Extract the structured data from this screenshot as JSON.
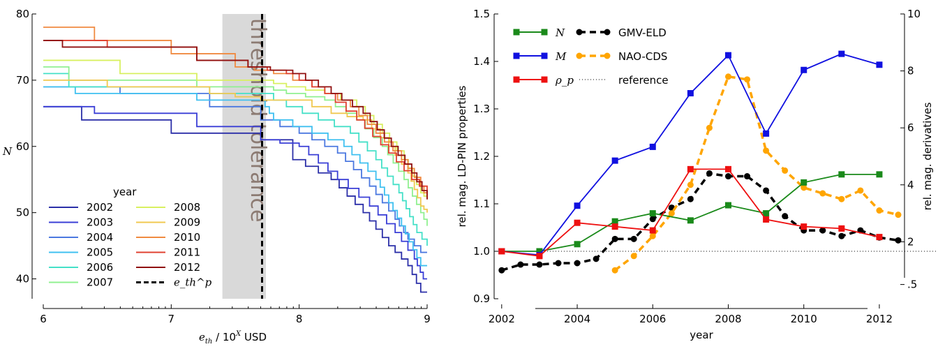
{
  "chart_data": [
    {
      "type": "line",
      "subtype": "step",
      "xlabel_main": "e",
      "xlabel_sub": "th",
      "xlabel_rest": " / 10",
      "xlabel_sup": "X",
      "xlabel_unit": " USD",
      "ylabel": "N",
      "xlim": [
        6,
        9
      ],
      "ylim": [
        37,
        80
      ],
      "xticks": [
        "6",
        "7",
        "8",
        "9"
      ],
      "yticks": [
        "40",
        "50",
        "60",
        "70",
        "80"
      ],
      "threshold_band": {
        "x0": 7.4,
        "x1": 7.74,
        "label": "threshold tolerance",
        "color": "#d9d9d9",
        "label_color": "#8c7b73"
      },
      "threshold_line": {
        "x": 7.71,
        "legend": "e_th^p"
      },
      "legend_title": "year",
      "series": [
        {
          "name": "2002",
          "color": "#2b2fa8",
          "points": [
            [
              6,
              66
            ],
            [
              6.3,
              66
            ],
            [
              6.3,
              64
            ],
            [
              7.0,
              64
            ],
            [
              7.0,
              62
            ],
            [
              7.7,
              62
            ],
            [
              7.7,
              61
            ],
            [
              7.95,
              61
            ],
            [
              7.95,
              58
            ],
            [
              8.25,
              55
            ],
            [
              8.5,
              50
            ],
            [
              8.7,
              45
            ],
            [
              8.85,
              42
            ],
            [
              8.95,
              38
            ],
            [
              9,
              38
            ]
          ]
        },
        {
          "name": "2003",
          "color": "#3a3ed6",
          "points": [
            [
              6,
              66
            ],
            [
              6.4,
              66
            ],
            [
              6.4,
              65
            ],
            [
              7.2,
              65
            ],
            [
              7.2,
              63
            ],
            [
              7.7,
              63
            ],
            [
              7.7,
              61
            ],
            [
              8.0,
              60
            ],
            [
              8.3,
              55
            ],
            [
              8.55,
              51
            ],
            [
              8.75,
              47
            ],
            [
              8.9,
              43
            ],
            [
              8.97,
              40
            ],
            [
              9,
              40
            ]
          ]
        },
        {
          "name": "2004",
          "color": "#4b78e0",
          "points": [
            [
              6,
              69
            ],
            [
              6.6,
              69
            ],
            [
              6.6,
              68
            ],
            [
              7.3,
              68
            ],
            [
              7.3,
              66
            ],
            [
              7.7,
              66
            ],
            [
              7.7,
              64
            ],
            [
              8.0,
              62
            ],
            [
              8.3,
              59
            ],
            [
              8.55,
              54
            ],
            [
              8.75,
              49
            ],
            [
              8.85,
              46
            ],
            [
              8.95,
              44
            ],
            [
              9,
              44
            ]
          ]
        },
        {
          "name": "2005",
          "color": "#3fc0f0",
          "points": [
            [
              6,
              69
            ],
            [
              6.25,
              69
            ],
            [
              6.25,
              68
            ],
            [
              7.2,
              68
            ],
            [
              7.2,
              67
            ],
            [
              7.7,
              67
            ],
            [
              7.8,
              64
            ],
            [
              8.1,
              62
            ],
            [
              8.35,
              60
            ],
            [
              8.6,
              55
            ],
            [
              8.8,
              48
            ],
            [
              8.95,
              42
            ],
            [
              9,
              42
            ]
          ]
        },
        {
          "name": "2006",
          "color": "#45e0c8",
          "points": [
            [
              6,
              71
            ],
            [
              6.2,
              71
            ],
            [
              6.2,
              69
            ],
            [
              7.3,
              69
            ],
            [
              7.3,
              68
            ],
            [
              7.7,
              68
            ],
            [
              7.9,
              66
            ],
            [
              8.15,
              64
            ],
            [
              8.4,
              62
            ],
            [
              8.6,
              58
            ],
            [
              8.78,
              53
            ],
            [
              8.92,
              47
            ],
            [
              9,
              45
            ]
          ]
        },
        {
          "name": "2007",
          "color": "#90f090",
          "points": [
            [
              6,
              72
            ],
            [
              6.2,
              72
            ],
            [
              6.2,
              70
            ],
            [
              7.2,
              70
            ],
            [
              7.2,
              69
            ],
            [
              7.7,
              69
            ],
            [
              7.9,
              68
            ],
            [
              8.2,
              67
            ],
            [
              8.45,
              64
            ],
            [
              8.65,
              60
            ],
            [
              8.82,
              55
            ],
            [
              8.95,
              50
            ],
            [
              9,
              48
            ]
          ]
        },
        {
          "name": "2008",
          "color": "#d8f060",
          "points": [
            [
              6,
              73
            ],
            [
              6.6,
              73
            ],
            [
              6.6,
              71
            ],
            [
              7.2,
              71
            ],
            [
              7.2,
              70
            ],
            [
              7.7,
              70
            ],
            [
              7.9,
              69
            ],
            [
              8.2,
              68
            ],
            [
              8.45,
              66
            ],
            [
              8.65,
              62
            ],
            [
              8.82,
              58
            ],
            [
              8.95,
              53
            ],
            [
              9,
              52
            ]
          ]
        },
        {
          "name": "2009",
          "color": "#f0c850",
          "points": [
            [
              6,
              70
            ],
            [
              6.5,
              70
            ],
            [
              6.5,
              69
            ],
            [
              7.3,
              69
            ],
            [
              7.3,
              68
            ],
            [
              7.7,
              67
            ],
            [
              7.95,
              67
            ],
            [
              8.25,
              65
            ],
            [
              8.5,
              64
            ],
            [
              8.7,
              60
            ],
            [
              8.85,
              56
            ],
            [
              8.95,
              51
            ],
            [
              9,
              50
            ]
          ]
        },
        {
          "name": "2010",
          "color": "#f08a40",
          "points": [
            [
              6,
              78
            ],
            [
              6.4,
              78
            ],
            [
              6.4,
              76
            ],
            [
              7.0,
              76
            ],
            [
              7.0,
              74
            ],
            [
              7.5,
              74
            ],
            [
              7.5,
              72
            ],
            [
              7.8,
              71
            ],
            [
              8.1,
              69
            ],
            [
              8.4,
              66
            ],
            [
              8.6,
              62
            ],
            [
              8.8,
              58
            ],
            [
              8.95,
              54
            ],
            [
              9,
              52
            ]
          ]
        },
        {
          "name": "2011",
          "color": "#e04030",
          "points": [
            [
              6,
              76
            ],
            [
              6.5,
              76
            ],
            [
              6.5,
              75
            ],
            [
              7.2,
              75
            ],
            [
              7.2,
              73
            ],
            [
              7.6,
              73
            ],
            [
              7.6,
              72
            ],
            [
              7.9,
              71
            ],
            [
              8.2,
              68
            ],
            [
              8.45,
              64
            ],
            [
              8.7,
              59
            ],
            [
              8.88,
              55
            ],
            [
              9,
              53
            ]
          ]
        },
        {
          "name": "2012",
          "color": "#901010",
          "points": [
            [
              6,
              76
            ],
            [
              6.15,
              76
            ],
            [
              6.15,
              75
            ],
            [
              7.2,
              75
            ],
            [
              7.2,
              73
            ],
            [
              7.6,
              73
            ],
            [
              7.6,
              72
            ],
            [
              7.95,
              71
            ],
            [
              8.25,
              68
            ],
            [
              8.5,
              65
            ],
            [
              8.72,
              60
            ],
            [
              8.88,
              56
            ],
            [
              9,
              52
            ]
          ]
        }
      ]
    },
    {
      "type": "line",
      "xlabel": "year",
      "ylabel_left": "rel. mag. LD-PIN properties",
      "ylabel_right": "rel. mag. derivatives",
      "xlim": [
        2001.8,
        2012.5
      ],
      "ylim_left": [
        0.9,
        1.5
      ],
      "ylim_right": [
        0,
        10
      ],
      "xticks": [
        "2002",
        "2004",
        "2006",
        "2008",
        "2010",
        "2012"
      ],
      "yticks_left": [
        "0.9",
        "1.0",
        "1.1",
        "1.2",
        "1.3",
        "1.4",
        "1.5"
      ],
      "yticks_right": [
        ".5",
        "2",
        "4",
        "6",
        "8",
        "10"
      ],
      "reference": {
        "y": 1.0,
        "label": "reference"
      },
      "series_left": [
        {
          "name": "N",
          "color": "#1a8a1a",
          "x": [
            2002,
            2003,
            2004,
            2005,
            2006,
            2007,
            2008,
            2009,
            2010,
            2011,
            2012
          ],
          "values": [
            1.0,
            1.0,
            1.015,
            1.063,
            1.08,
            1.065,
            1.097,
            1.08,
            1.145,
            1.162,
            1.162
          ]
        },
        {
          "name": "M",
          "color": "#1010e0",
          "x": [
            2002,
            2003,
            2004,
            2005,
            2006,
            2007,
            2008,
            2009,
            2010,
            2011,
            2012
          ],
          "values": [
            1.0,
            0.992,
            1.096,
            1.191,
            1.22,
            1.333,
            1.413,
            1.248,
            1.382,
            1.416,
            1.393
          ]
        },
        {
          "name": "ρ_p",
          "color": "#ee1010",
          "x": [
            2002,
            2003,
            2004,
            2005,
            2006,
            2007,
            2008,
            2009,
            2010,
            2011,
            2012
          ],
          "values": [
            1.0,
            0.99,
            1.06,
            1.052,
            1.044,
            1.173,
            1.173,
            1.067,
            1.052,
            1.048,
            1.03
          ]
        }
      ],
      "series_right": [
        {
          "name": "GMV-ELD",
          "color": "#000000",
          "x": [
            2002,
            2002.5,
            2003,
            2003.5,
            2004,
            2004.5,
            2005,
            2005.5,
            2006,
            2006.5,
            2007,
            2007.5,
            2008,
            2008.5,
            2009,
            2009.5,
            2010,
            2010.5,
            2011,
            2011.5,
            2012,
            2012.5
          ],
          "values": [
            1.0,
            1.2,
            1.2,
            1.25,
            1.25,
            1.4,
            2.1,
            2.1,
            2.8,
            3.2,
            3.5,
            4.4,
            4.3,
            4.3,
            3.8,
            2.9,
            2.4,
            2.4,
            2.2,
            2.4,
            2.15,
            2.05
          ]
        },
        {
          "name": "NAO-CDS",
          "color": "#ffa500",
          "x": [
            2005,
            2005.5,
            2006,
            2006.5,
            2007,
            2007.5,
            2008,
            2008.5,
            2009,
            2009.5,
            2010,
            2010.5,
            2011,
            2011.5,
            2012,
            2012.5
          ],
          "values": [
            1.0,
            1.5,
            2.2,
            3.0,
            4.0,
            6.0,
            7.8,
            7.7,
            5.2,
            4.5,
            3.9,
            3.7,
            3.5,
            3.8,
            3.1,
            2.95
          ]
        }
      ]
    }
  ]
}
